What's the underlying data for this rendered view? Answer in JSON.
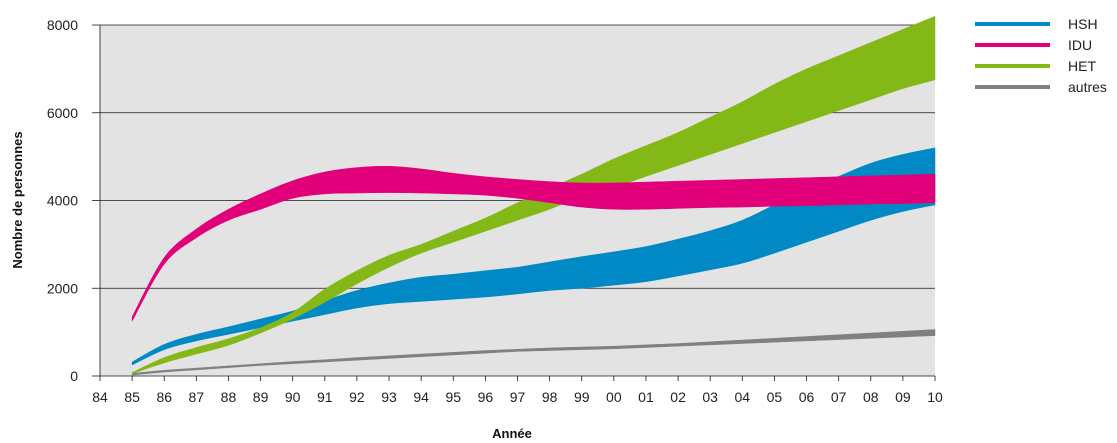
{
  "chart_data": {
    "type": "area",
    "xlabel": "Année",
    "ylabel": "Nombre de personnes",
    "x_ticks": [
      "84",
      "85",
      "86",
      "87",
      "88",
      "89",
      "90",
      "91",
      "92",
      "93",
      "94",
      "95",
      "96",
      "97",
      "98",
      "99",
      "00",
      "01",
      "02",
      "03",
      "04",
      "05",
      "06",
      "07",
      "08",
      "09",
      "10"
    ],
    "y_ticks": [
      "0",
      "2000",
      "4000",
      "6000",
      "8000"
    ],
    "xlim": [
      1984,
      2010
    ],
    "ylim": [
      0,
      8000
    ],
    "grid": "horizontal",
    "background": "#e3e3e3",
    "legend_position": "right",
    "series": [
      {
        "name": "HSH",
        "color": "#0089c4",
        "x": [
          1985,
          1986,
          1987,
          1988,
          1989,
          1990,
          1991,
          1992,
          1993,
          1994,
          1995,
          1996,
          1997,
          1998,
          1999,
          2000,
          2001,
          2002,
          2003,
          2004,
          2005,
          2006,
          2007,
          2008,
          2009,
          2010
        ],
        "lower": [
          250,
          600,
          800,
          950,
          1100,
          1250,
          1400,
          1550,
          1650,
          1700,
          1750,
          1800,
          1870,
          1950,
          2000,
          2070,
          2150,
          2280,
          2420,
          2570,
          2800,
          3050,
          3300,
          3550,
          3750,
          3900
        ],
        "upper": [
          320,
          720,
          950,
          1120,
          1300,
          1480,
          1720,
          1950,
          2120,
          2250,
          2320,
          2400,
          2480,
          2600,
          2720,
          2830,
          2950,
          3120,
          3310,
          3550,
          3900,
          4250,
          4550,
          4850,
          5050,
          5200
        ]
      },
      {
        "name": "IDU",
        "color": "#e2007a",
        "x": [
          1985,
          1986,
          1987,
          1988,
          1989,
          1990,
          1991,
          1992,
          1993,
          1994,
          1995,
          1996,
          1997,
          1998,
          1999,
          2000,
          2001,
          2002,
          2003,
          2004,
          2005,
          2006,
          2007,
          2008,
          2009,
          2010
        ],
        "lower": [
          1250,
          2550,
          3150,
          3550,
          3800,
          4050,
          4150,
          4170,
          4180,
          4170,
          4150,
          4120,
          4050,
          3950,
          3850,
          3800,
          3800,
          3820,
          3840,
          3850,
          3870,
          3880,
          3900,
          3920,
          3930,
          3950
        ],
        "upper": [
          1350,
          2700,
          3350,
          3800,
          4150,
          4450,
          4650,
          4750,
          4780,
          4720,
          4620,
          4540,
          4480,
          4430,
          4400,
          4400,
          4420,
          4440,
          4460,
          4480,
          4500,
          4520,
          4540,
          4560,
          4580,
          4600
        ]
      },
      {
        "name": "HET",
        "color": "#84b817",
        "x": [
          1985,
          1986,
          1987,
          1988,
          1989,
          1990,
          1991,
          1992,
          1993,
          1994,
          1995,
          1996,
          1997,
          1998,
          1999,
          2000,
          2001,
          2002,
          2003,
          2004,
          2005,
          2006,
          2007,
          2008,
          2009,
          2010
        ],
        "lower": [
          50,
          300,
          500,
          700,
          980,
          1300,
          1680,
          2100,
          2480,
          2800,
          3050,
          3300,
          3550,
          3800,
          4100,
          4300,
          4550,
          4800,
          5050,
          5300,
          5550,
          5800,
          6050,
          6300,
          6550,
          6750
        ],
        "upper": [
          80,
          420,
          650,
          850,
          1100,
          1450,
          1980,
          2400,
          2750,
          3000,
          3300,
          3600,
          3950,
          4280,
          4600,
          4950,
          5250,
          5550,
          5900,
          6250,
          6650,
          7000,
          7300,
          7600,
          7900,
          8200
        ]
      },
      {
        "name": "autres",
        "color": "#808080",
        "x": [
          1985,
          1986,
          1987,
          1988,
          1989,
          1990,
          1991,
          1992,
          1993,
          1994,
          1995,
          1996,
          1997,
          1998,
          1999,
          2000,
          2001,
          2002,
          2003,
          2004,
          2005,
          2006,
          2007,
          2008,
          2009,
          2010
        ],
        "lower": [
          20,
          90,
          140,
          190,
          240,
          280,
          320,
          360,
          400,
          440,
          480,
          520,
          560,
          580,
          600,
          620,
          650,
          680,
          710,
          740,
          770,
          800,
          830,
          860,
          890,
          920
        ],
        "upper": [
          60,
          130,
          180,
          230,
          280,
          330,
          370,
          420,
          460,
          500,
          540,
          580,
          610,
          640,
          660,
          680,
          710,
          740,
          780,
          820,
          860,
          900,
          940,
          980,
          1020,
          1060
        ]
      }
    ]
  }
}
